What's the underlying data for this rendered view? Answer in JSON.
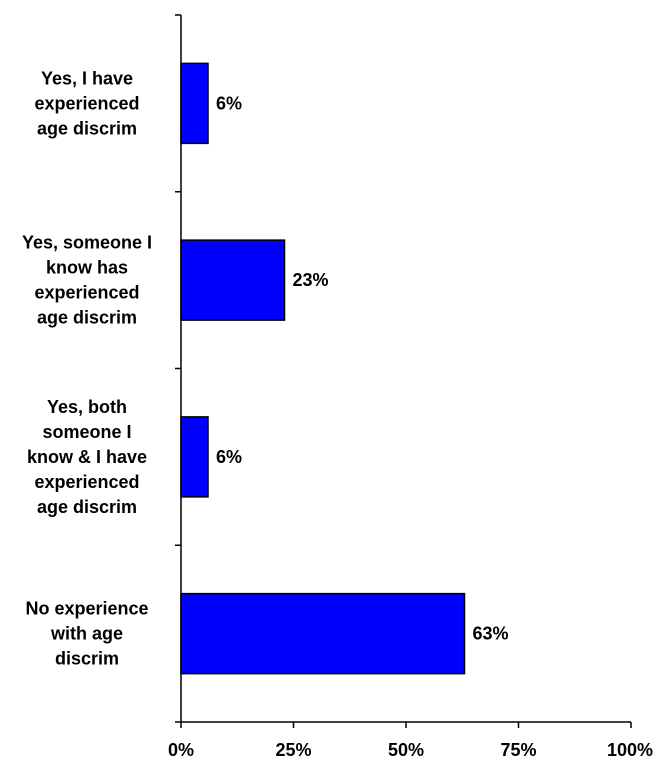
{
  "chart_data": {
    "type": "bar",
    "orientation": "horizontal",
    "categories": [
      [
        "Yes, I have",
        "experienced",
        "age discrim"
      ],
      [
        "Yes, someone I",
        "know has",
        "experienced",
        "age discrim"
      ],
      [
        "Yes, both",
        "someone I",
        "know & I have",
        "experienced",
        "age discrim"
      ],
      [
        "No experience",
        "with age",
        "discrim"
      ]
    ],
    "values": [
      6,
      23,
      6,
      63
    ],
    "value_labels": [
      "6%",
      "23%",
      "6%",
      "63%"
    ],
    "xlim": [
      0,
      100
    ],
    "xticks": [
      0,
      25,
      50,
      75,
      100
    ],
    "xtick_labels": [
      "0%",
      "25%",
      "50%",
      "75%",
      "100%"
    ],
    "title": "",
    "xlabel": "",
    "ylabel": "",
    "grid": false,
    "legend": "none",
    "colors": {
      "bar_fill": "#0000FF",
      "bar_stroke": "#000000",
      "axis": "#000000",
      "background": "#FFFFFF"
    }
  }
}
